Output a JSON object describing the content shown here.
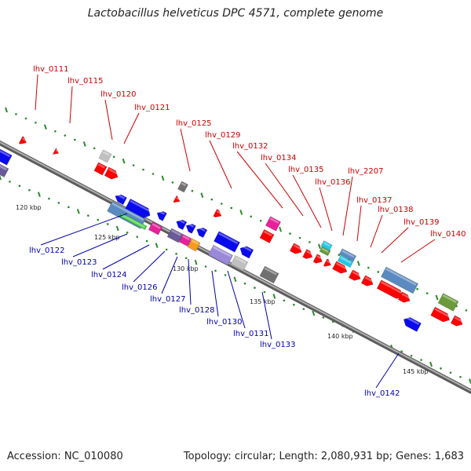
{
  "title": "Lactobacillus helveticus DPC 4571, complete genome",
  "accession": "Accession: NC_010080",
  "topology": "Topology: circular; Length: 2,080,931 bp; Genes: 1,683",
  "colors": {
    "top_label": "#cc0000",
    "bottom_label": "#0000aa",
    "backbone": "#808080",
    "tick": "#2a8a2a",
    "red": "#ff0000",
    "blue": "#0a0aee",
    "steel": "#5a8ac0",
    "green": "#44cc44",
    "olive": "#6a9a3a",
    "slate": "#6a5a9a",
    "lavender": "#9a88d8",
    "pink": "#e8209a",
    "orange": "#f59a1a",
    "gray": "#707070",
    "lightgray": "#c0c0c0",
    "cyan": "#22c8e8"
  },
  "kbp_labels": [
    "120 kbp",
    "125 kbp",
    "130 kbp",
    "135 kbp",
    "140 kbp",
    "145 kbp"
  ],
  "genes_top": [
    "lhv_0111",
    "lhv_0115",
    "lhv_0120",
    "lhv_0121",
    "lhv_0125",
    "lhv_0129",
    "lhv_0132",
    "lhv_0134",
    "lhv_0135",
    "lhv_0136",
    "lhv_2207",
    "lhv_0137",
    "lhv_0138",
    "lhv_0139",
    "lhv_0140"
  ],
  "genes_bottom": [
    "lhv_0122",
    "lhv_0123",
    "lhv_0124",
    "lhv_0126",
    "lhv_0127",
    "lhv_0128",
    "lhv_0130",
    "lhv_0131",
    "lhv_0133",
    "lhv_0142"
  ]
}
